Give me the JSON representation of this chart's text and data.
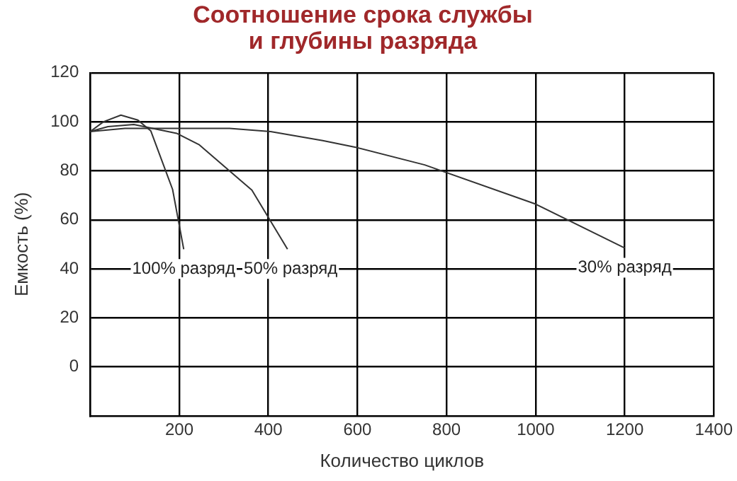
{
  "chart_data": {
    "type": "line",
    "title": "Соотношение срока службы\nи глубины разряда",
    "xlabel": "Количество циклов",
    "ylabel": "Емкость (%)",
    "series": [
      {
        "name": "100% разряд",
        "color": "#333333",
        "x": [
          0,
          30,
          69,
          107,
          136,
          185,
          210
        ],
        "values": [
          96,
          100,
          102.7,
          100.7,
          96.3,
          72.4,
          48
        ]
      },
      {
        "name": "50% разряд",
        "color": "#333333",
        "x": [
          0,
          40,
          98,
          194,
          244,
          363,
          443
        ],
        "values": [
          96,
          98,
          98.9,
          95.3,
          90.7,
          72.1,
          48
        ]
      },
      {
        "name": "30% разряд",
        "color": "#333333",
        "x": [
          0,
          78,
          313,
          405,
          522,
          600,
          751,
          1000,
          1200
        ],
        "values": [
          96,
          97.3,
          97.3,
          96,
          92.3,
          89.4,
          82.4,
          66.4,
          48.5
        ]
      }
    ],
    "xlim": [
      0,
      1400
    ],
    "xticks": [
      {
        "value": 0,
        "label": null
      },
      200,
      400,
      600,
      800,
      1000,
      1200,
      1400
    ],
    "ylim": [
      -20,
      120
    ],
    "yticks": [
      0,
      20,
      40,
      60,
      80,
      100,
      120
    ],
    "grid": true,
    "legend": false,
    "marker": "none",
    "line_style": "solid"
  }
}
